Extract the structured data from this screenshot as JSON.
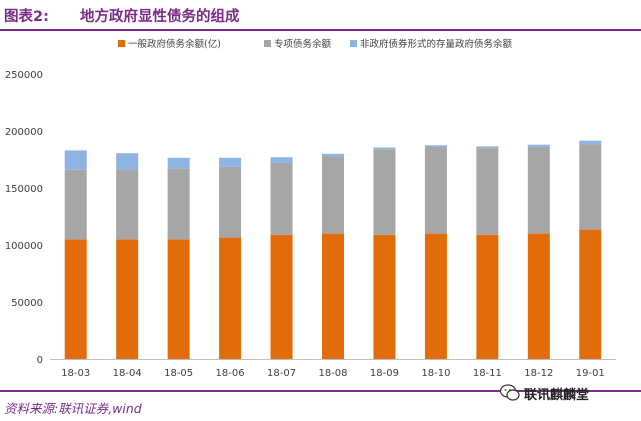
{
  "header": {
    "figure_label": "图表2:",
    "figure_title": "地方政府显性债务的组成"
  },
  "footer": {
    "source": "资料来源:联讯证券,wind",
    "watermark_text": "联讯麒麟堂",
    "watermark_icon": "wechat-icon"
  },
  "colors": {
    "accent": "#7b2c8a",
    "general_debt": "#e36c0a",
    "special_debt": "#a6a6a6",
    "non_gov_bond_debt": "#8db4e2"
  },
  "chart_data": {
    "type": "bar",
    "stacked": true,
    "title": "",
    "xlabel": "",
    "ylabel": "",
    "categories": [
      "18-03",
      "18-04",
      "18-05",
      "18-06",
      "18-07",
      "18-08",
      "18-09",
      "18-10",
      "18-11",
      "18-12",
      "19-01"
    ],
    "ylim": [
      0,
      250000
    ],
    "yticks": [
      0,
      50000,
      100000,
      150000,
      200000,
      250000
    ],
    "ytick_labels": [
      "0",
      "50000",
      "100000",
      "150000",
      "200000",
      "250000"
    ],
    "grid": false,
    "legend_position": "top-center",
    "series": [
      {
        "name": "一般政府债务余额(亿)",
        "color": "#e36c0a",
        "values": [
          105000,
          105000,
          105000,
          106500,
          109000,
          110000,
          109000,
          110000,
          109000,
          110000,
          113500
        ]
      },
      {
        "name": "专项债务余额",
        "color": "#a6a6a6",
        "values": [
          61000,
          61500,
          62000,
          62000,
          63000,
          68000,
          75000,
          76000,
          76000,
          76000,
          75000
        ]
      },
      {
        "name": "非政府债券形式的存量政府债务余额",
        "color": "#8db4e2",
        "values": [
          17000,
          14000,
          9500,
          8000,
          5000,
          2000,
          1500,
          1500,
          1500,
          2000,
          3000
        ]
      }
    ]
  }
}
